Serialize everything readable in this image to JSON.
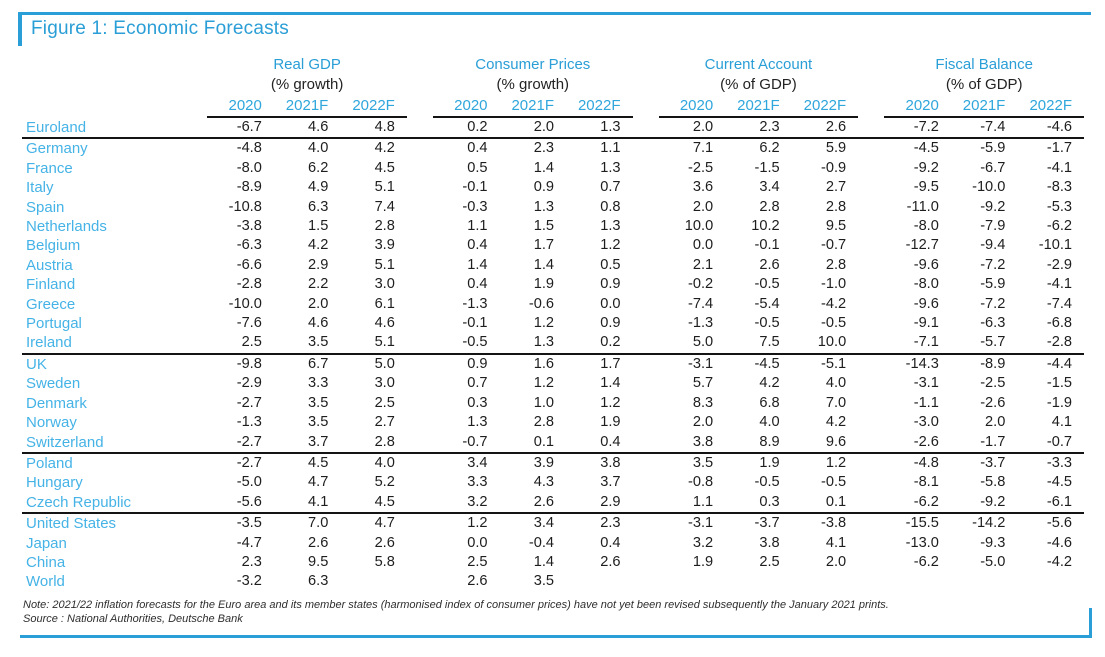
{
  "figure": {
    "title": "Figure 1: Economic Forecasts",
    "note": "Note: 2021/22 inflation forecasts for the Euro area and its member states (harmonised index of consumer prices) have not yet been revised subsequently the January 2021 prints.",
    "source": "Source : National Authorities, Deutsche Bank"
  },
  "colors": {
    "accent_blue": "#2a9ed6",
    "country_blue": "#45b3e6",
    "value_text": "#1e1e1e",
    "rule_black": "#141414"
  },
  "table": {
    "groups": [
      {
        "label": "Real GDP",
        "sub": "(% growth)"
      },
      {
        "label": "Consumer Prices",
        "sub": "(% growth)"
      },
      {
        "label": "Current Account",
        "sub": "(% of GDP)"
      },
      {
        "label": "Fiscal Balance",
        "sub": "(% of GDP)"
      }
    ],
    "years": [
      "2020",
      "2021F",
      "2022F"
    ],
    "rows": [
      {
        "country": "Euroland",
        "values": [
          "-6.7",
          "4.6",
          "4.8",
          "0.2",
          "2.0",
          "1.3",
          "2.0",
          "2.3",
          "2.6",
          "-7.2",
          "-7.4",
          "-4.6"
        ],
        "separator_below": true
      },
      {
        "country": "Germany",
        "values": [
          "-4.8",
          "4.0",
          "4.2",
          "0.4",
          "2.3",
          "1.1",
          "7.1",
          "6.2",
          "5.9",
          "-4.5",
          "-5.9",
          "-1.7"
        ],
        "separator_below": false
      },
      {
        "country": "France",
        "values": [
          "-8.0",
          "6.2",
          "4.5",
          "0.5",
          "1.4",
          "1.3",
          "-2.5",
          "-1.5",
          "-0.9",
          "-9.2",
          "-6.7",
          "-4.1"
        ],
        "separator_below": false
      },
      {
        "country": "Italy",
        "values": [
          "-8.9",
          "4.9",
          "5.1",
          "-0.1",
          "0.9",
          "0.7",
          "3.6",
          "3.4",
          "2.7",
          "-9.5",
          "-10.0",
          "-8.3"
        ],
        "separator_below": false
      },
      {
        "country": "Spain",
        "values": [
          "-10.8",
          "6.3",
          "7.4",
          "-0.3",
          "1.3",
          "0.8",
          "2.0",
          "2.8",
          "2.8",
          "-11.0",
          "-9.2",
          "-5.3"
        ],
        "separator_below": false
      },
      {
        "country": "Netherlands",
        "values": [
          "-3.8",
          "1.5",
          "2.8",
          "1.1",
          "1.5",
          "1.3",
          "10.0",
          "10.2",
          "9.5",
          "-8.0",
          "-7.9",
          "-6.2"
        ],
        "separator_below": false
      },
      {
        "country": "Belgium",
        "values": [
          "-6.3",
          "4.2",
          "3.9",
          "0.4",
          "1.7",
          "1.2",
          "0.0",
          "-0.1",
          "-0.7",
          "-12.7",
          "-9.4",
          "-10.1"
        ],
        "separator_below": false
      },
      {
        "country": "Austria",
        "values": [
          "-6.6",
          "2.9",
          "5.1",
          "1.4",
          "1.4",
          "0.5",
          "2.1",
          "2.6",
          "2.8",
          "-9.6",
          "-7.2",
          "-2.9"
        ],
        "separator_below": false
      },
      {
        "country": "Finland",
        "values": [
          "-2.8",
          "2.2",
          "3.0",
          "0.4",
          "1.9",
          "0.9",
          "-0.2",
          "-0.5",
          "-1.0",
          "-8.0",
          "-5.9",
          "-4.1"
        ],
        "separator_below": false
      },
      {
        "country": "Greece",
        "values": [
          "-10.0",
          "2.0",
          "6.1",
          "-1.3",
          "-0.6",
          "0.0",
          "-7.4",
          "-5.4",
          "-4.2",
          "-9.6",
          "-7.2",
          "-7.4"
        ],
        "separator_below": false
      },
      {
        "country": "Portugal",
        "values": [
          "-7.6",
          "4.6",
          "4.6",
          "-0.1",
          "1.2",
          "0.9",
          "-1.3",
          "-0.5",
          "-0.5",
          "-9.1",
          "-6.3",
          "-6.8"
        ],
        "separator_below": false
      },
      {
        "country": "Ireland",
        "values": [
          "2.5",
          "3.5",
          "5.1",
          "-0.5",
          "1.3",
          "0.2",
          "5.0",
          "7.5",
          "10.0",
          "-7.1",
          "-5.7",
          "-2.8"
        ],
        "separator_below": true
      },
      {
        "country": "UK",
        "values": [
          "-9.8",
          "6.7",
          "5.0",
          "0.9",
          "1.6",
          "1.7",
          "-3.1",
          "-4.5",
          "-5.1",
          "-14.3",
          "-8.9",
          "-4.4"
        ],
        "separator_below": false
      },
      {
        "country": "Sweden",
        "values": [
          "-2.9",
          "3.3",
          "3.0",
          "0.7",
          "1.2",
          "1.4",
          "5.7",
          "4.2",
          "4.0",
          "-3.1",
          "-2.5",
          "-1.5"
        ],
        "separator_below": false
      },
      {
        "country": "Denmark",
        "values": [
          "-2.7",
          "3.5",
          "2.5",
          "0.3",
          "1.0",
          "1.2",
          "8.3",
          "6.8",
          "7.0",
          "-1.1",
          "-2.6",
          "-1.9"
        ],
        "separator_below": false
      },
      {
        "country": "Norway",
        "values": [
          "-1.3",
          "3.5",
          "2.7",
          "1.3",
          "2.8",
          "1.9",
          "2.0",
          "4.0",
          "4.2",
          "-3.0",
          "2.0",
          "4.1"
        ],
        "separator_below": false
      },
      {
        "country": "Switzerland",
        "values": [
          "-2.7",
          "3.7",
          "2.8",
          "-0.7",
          "0.1",
          "0.4",
          "3.8",
          "8.9",
          "9.6",
          "-2.6",
          "-1.7",
          "-0.7"
        ],
        "separator_below": true
      },
      {
        "country": "Poland",
        "values": [
          "-2.7",
          "4.5",
          "4.0",
          "3.4",
          "3.9",
          "3.8",
          "3.5",
          "1.9",
          "1.2",
          "-4.8",
          "-3.7",
          "-3.3"
        ],
        "separator_below": false
      },
      {
        "country": "Hungary",
        "values": [
          "-5.0",
          "4.7",
          "5.2",
          "3.3",
          "4.3",
          "3.7",
          "-0.8",
          "-0.5",
          "-0.5",
          "-8.1",
          "-5.8",
          "-4.5"
        ],
        "separator_below": false
      },
      {
        "country": "Czech Republic",
        "values": [
          "-5.6",
          "4.1",
          "4.5",
          "3.2",
          "2.6",
          "2.9",
          "1.1",
          "0.3",
          "0.1",
          "-6.2",
          "-9.2",
          "-6.1"
        ],
        "separator_below": true
      },
      {
        "country": "United States",
        "values": [
          "-3.5",
          "7.0",
          "4.7",
          "1.2",
          "3.4",
          "2.3",
          "-3.1",
          "-3.7",
          "-3.8",
          "-15.5",
          "-14.2",
          "-5.6"
        ],
        "separator_below": false
      },
      {
        "country": "Japan",
        "values": [
          "-4.7",
          "2.6",
          "2.6",
          "0.0",
          "-0.4",
          "0.4",
          "3.2",
          "3.8",
          "4.1",
          "-13.0",
          "-9.3",
          "-4.6"
        ],
        "separator_below": false
      },
      {
        "country": "China",
        "values": [
          "2.3",
          "9.5",
          "5.8",
          "2.5",
          "1.4",
          "2.6",
          "1.9",
          "2.5",
          "2.0",
          "-6.2",
          "-5.0",
          "-4.2"
        ],
        "separator_below": false
      },
      {
        "country": "World",
        "values": [
          "-3.2",
          "6.3",
          "",
          "2.6",
          "3.5",
          "",
          "",
          "",
          "",
          "",
          "",
          ""
        ],
        "separator_below": false
      }
    ]
  }
}
